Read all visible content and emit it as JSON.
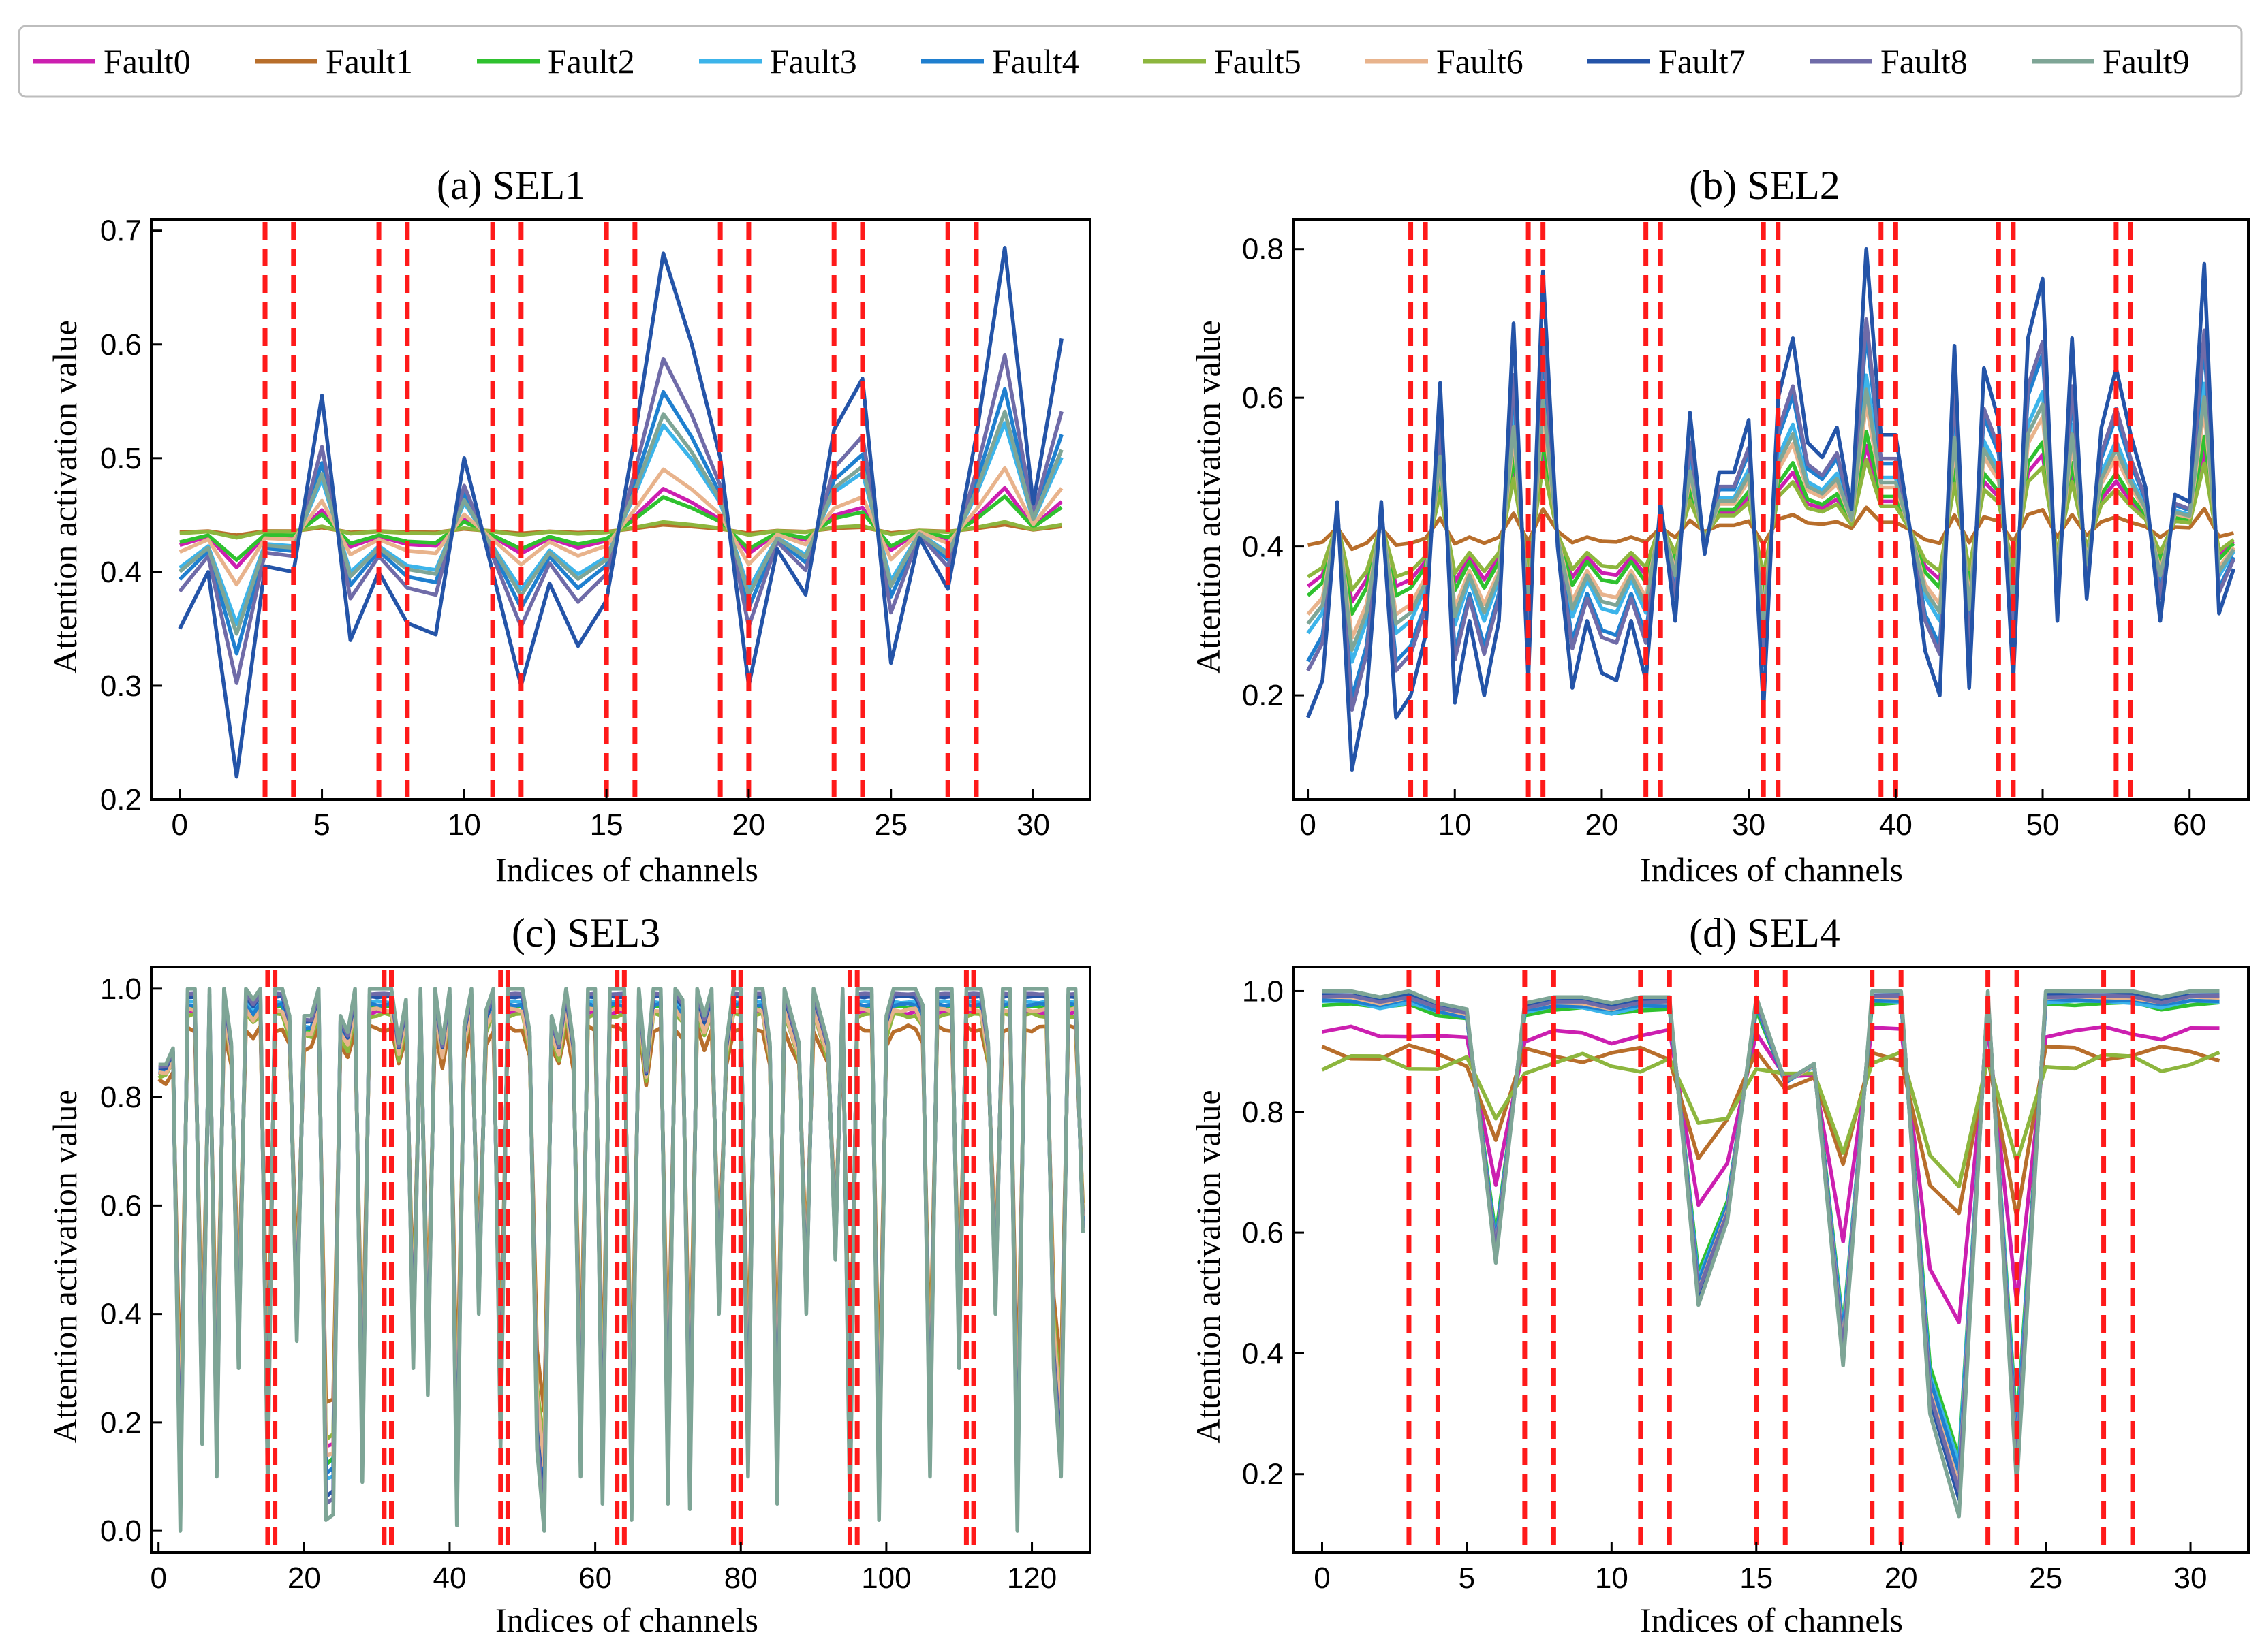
{
  "legend": {
    "entries": [
      {
        "name": "Fault0",
        "color": "#cc1fb0"
      },
      {
        "name": "Fault1",
        "color": "#b86e2b"
      },
      {
        "name": "Fault2",
        "color": "#2fc12f"
      },
      {
        "name": "Fault3",
        "color": "#3cb4ea"
      },
      {
        "name": "Fault4",
        "color": "#1f7fcf"
      },
      {
        "name": "Fault5",
        "color": "#8db63e"
      },
      {
        "name": "Fault6",
        "color": "#e8b38c"
      },
      {
        "name": "Fault7",
        "color": "#2454a8"
      },
      {
        "name": "Fault8",
        "color": "#6f6ba8"
      },
      {
        "name": "Fault9",
        "color": "#7ea596"
      }
    ]
  },
  "chart_data": [
    {
      "type": "line",
      "title": "(a) SEL1",
      "xlabel": "Indices of channels",
      "ylabel": "Attention activation value",
      "xlim": [
        -1,
        32
      ],
      "ylim": [
        0.2,
        0.71
      ],
      "xticks": [
        0,
        5,
        10,
        15,
        20,
        25,
        30
      ],
      "yticks": [
        0.2,
        0.3,
        0.4,
        0.5,
        0.6,
        0.7
      ],
      "ytick_labels": [
        "0.2",
        "0.3",
        "0.4",
        "0.5",
        "0.6",
        "0.7"
      ],
      "vlines": [
        3,
        4,
        7,
        8,
        11,
        12,
        15,
        16,
        19,
        20,
        23,
        24,
        27,
        28
      ],
      "base_series": {
        "name": "Fault7",
        "values": [
          0.35,
          0.4,
          0.22,
          0.405,
          0.4,
          0.555,
          0.34,
          0.4,
          0.355,
          0.345,
          0.5,
          0.4,
          0.3,
          0.39,
          0.335,
          0.375,
          0.52,
          0.68,
          0.6,
          0.5,
          0.3,
          0.42,
          0.38,
          0.525,
          0.57,
          0.32,
          0.43,
          0.385,
          0.52,
          0.685,
          0.46,
          0.605
        ]
      },
      "series_blend": [
        0.15,
        0.02,
        0.12,
        0.38,
        0.5,
        0.03,
        0.22,
        1.0,
        0.62,
        0.42
      ]
    },
    {
      "type": "line",
      "title": "(b) SEL2",
      "xlabel": "Indices of channels",
      "ylabel": "Attention activation value",
      "xlim": [
        -1,
        64
      ],
      "ylim": [
        0.06,
        0.84
      ],
      "xticks": [
        0,
        10,
        20,
        30,
        40,
        50,
        60
      ],
      "yticks": [
        0.2,
        0.4,
        0.6,
        0.8
      ],
      "ytick_labels": [
        "0.2",
        "0.4",
        "0.6",
        "0.8"
      ],
      "vlines": [
        7,
        8,
        15,
        16,
        23,
        24,
        31,
        32,
        39,
        40,
        47,
        48,
        55,
        56
      ],
      "base_series": {
        "name": "Fault7",
        "values": [
          0.17,
          0.22,
          0.46,
          0.1,
          0.2,
          0.46,
          0.17,
          0.2,
          0.28,
          0.62,
          0.19,
          0.3,
          0.2,
          0.3,
          0.7,
          0.22,
          0.77,
          0.4,
          0.21,
          0.3,
          0.23,
          0.22,
          0.3,
          0.22,
          0.46,
          0.3,
          0.58,
          0.39,
          0.5,
          0.5,
          0.57,
          0.18,
          0.6,
          0.68,
          0.54,
          0.52,
          0.56,
          0.45,
          0.8,
          0.55,
          0.55,
          0.42,
          0.26,
          0.2,
          0.67,
          0.21,
          0.64,
          0.57,
          0.22,
          0.68,
          0.76,
          0.3,
          0.68,
          0.33,
          0.56,
          0.64,
          0.55,
          0.48,
          0.3,
          0.47,
          0.46,
          0.78,
          0.31,
          0.37
        ]
      },
      "series_blend": [
        0.3,
        0.08,
        0.35,
        0.55,
        0.7,
        0.25,
        0.45,
        1.0,
        0.75,
        0.5
      ]
    },
    {
      "type": "line",
      "title": "(c) SEL3",
      "xlabel": "Indices of channels",
      "ylabel": "Attention activation value",
      "xlim": [
        -1,
        128
      ],
      "ylim": [
        -0.04,
        1.04
      ],
      "xticks": [
        0,
        20,
        40,
        60,
        80,
        100,
        120
      ],
      "yticks": [
        0.0,
        0.2,
        0.4,
        0.6,
        0.8,
        1.0
      ],
      "ytick_labels": [
        "0.0",
        "0.2",
        "0.4",
        "0.6",
        "0.8",
        "1.0"
      ],
      "vlines": [
        15,
        16,
        31,
        32,
        47,
        48,
        63,
        64,
        79,
        80,
        95,
        96,
        111,
        112
      ],
      "base_series": {
        "name": "Fault9",
        "values": [
          0.86,
          0.86,
          0.89,
          0.0,
          1.0,
          1.0,
          0.16,
          1.0,
          0.1,
          1.0,
          0.9,
          0.3,
          1.0,
          0.98,
          1.0,
          0.08,
          1.0,
          1.0,
          0.95,
          0.35,
          0.95,
          0.95,
          1.0,
          0.02,
          0.03,
          0.95,
          0.92,
          1.0,
          0.09,
          1.0,
          1.0,
          1.0,
          1.0,
          0.9,
          0.98,
          0.3,
          1.0,
          0.25,
          1.0,
          0.9,
          1.0,
          0.01,
          0.93,
          1.0,
          0.4,
          0.96,
          1.0,
          0.15,
          1.0,
          1.0,
          1.0,
          0.92,
          0.15,
          0.0,
          0.95,
          0.9,
          1.0,
          0.9,
          0.1,
          1.0,
          1.0,
          0.05,
          1.0,
          1.0,
          1.0,
          0.02,
          1.0,
          0.85,
          1.0,
          1.0,
          0.05,
          1.0,
          0.98,
          0.04,
          1.0,
          0.95,
          1.0,
          0.4,
          0.9,
          1.0,
          1.0,
          0.1,
          1.0,
          1.0,
          0.9,
          0.05,
          1.0,
          0.95,
          0.9,
          0.4,
          1.0,
          0.95,
          0.9,
          0.5,
          1.0,
          0.02,
          1.0,
          1.0,
          1.0,
          0.02,
          0.95,
          1.0,
          1.0,
          1.0,
          1.0,
          0.97,
          0.1,
          1.0,
          1.0,
          1.0,
          0.3,
          1.0,
          1.0,
          1.0,
          0.9,
          0.4,
          1.0,
          1.0,
          0.0,
          1.0,
          1.0,
          1.0,
          1.0,
          0.3,
          0.1,
          1.0,
          1.0,
          0.55
        ]
      },
      "series_blend": [
        0.82,
        0.7,
        0.86,
        0.9,
        0.88,
        0.8,
        0.84,
        0.94,
        0.96,
        1.0
      ]
    },
    {
      "type": "line",
      "title": "(d) SEL4",
      "xlabel": "Indices of channels",
      "ylabel": "Attention activation value",
      "xlim": [
        -1,
        32
      ],
      "ylim": [
        0.07,
        1.04
      ],
      "xticks": [
        0,
        5,
        10,
        15,
        20,
        25,
        30
      ],
      "yticks": [
        0.2,
        0.4,
        0.6,
        0.8,
        1.0
      ],
      "ytick_labels": [
        "0.2",
        "0.4",
        "0.6",
        "0.8",
        "1.0"
      ],
      "vlines": [
        3,
        4,
        7,
        8,
        11,
        12,
        15,
        16,
        19,
        20,
        23,
        24,
        27,
        28
      ],
      "base_series": {
        "name": "Fault9",
        "values": [
          1.0,
          1.0,
          0.99,
          1.0,
          0.98,
          0.97,
          0.55,
          0.98,
          0.99,
          0.99,
          0.98,
          0.99,
          0.99,
          0.48,
          0.62,
          0.99,
          0.85,
          0.88,
          0.38,
          1.0,
          1.0,
          0.3,
          0.13,
          1.0,
          0.18,
          1.0,
          1.0,
          1.0,
          1.0,
          0.99,
          1.0,
          1.0
        ]
      },
      "series_blend": [
        0.55,
        0.32,
        0.86,
        0.88,
        0.9,
        0.22,
        0.93,
        0.96,
        0.94,
        1.0
      ]
    }
  ]
}
